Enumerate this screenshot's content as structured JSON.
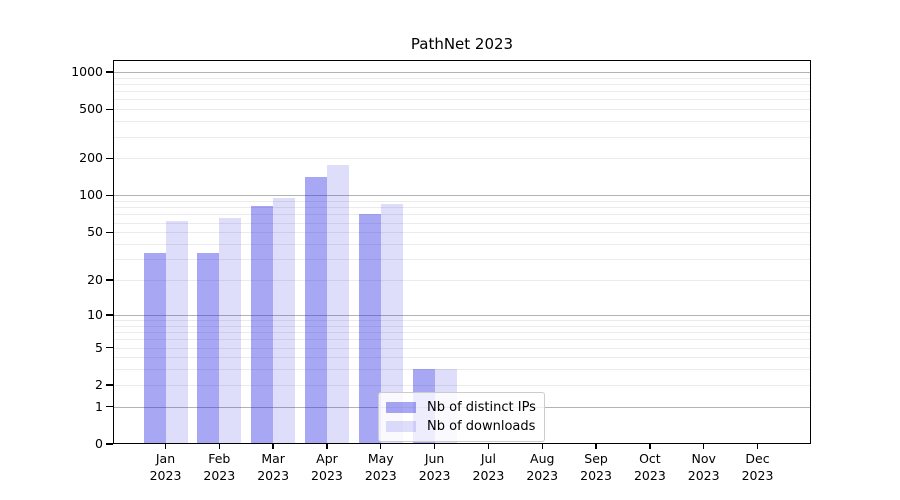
{
  "chart_data": {
    "type": "bar",
    "title": "PathNet 2023",
    "year": "2023",
    "categories": [
      "Jan",
      "Feb",
      "Mar",
      "Apr",
      "May",
      "Jun",
      "Jul",
      "Aug",
      "Sep",
      "Oct",
      "Nov",
      "Dec"
    ],
    "series": [
      {
        "name": "Nb of distinct IPs",
        "values": [
          34,
          34,
          82,
          140,
          70,
          3,
          0,
          0,
          0,
          0,
          0,
          0
        ],
        "color": "rgba(34,34,224,0.40)"
      },
      {
        "name": "Nb of downloads",
        "values": [
          62,
          66,
          95,
          177,
          85,
          3,
          0,
          0,
          0,
          0,
          0,
          0
        ],
        "color": "rgba(34,34,224,0.15)"
      }
    ],
    "yscale": "symlog",
    "yticks": [
      1000,
      500,
      200,
      100,
      50,
      20,
      10,
      5,
      2,
      1,
      0
    ],
    "ylim": [
      0,
      1250
    ],
    "grid": true,
    "legend_position": "lower-center",
    "colors": {
      "grid_major": "#b3b3b3",
      "grid_minor": "#ebebeb",
      "spine": "#000000",
      "text": "#000000",
      "background": "#ffffff"
    }
  }
}
